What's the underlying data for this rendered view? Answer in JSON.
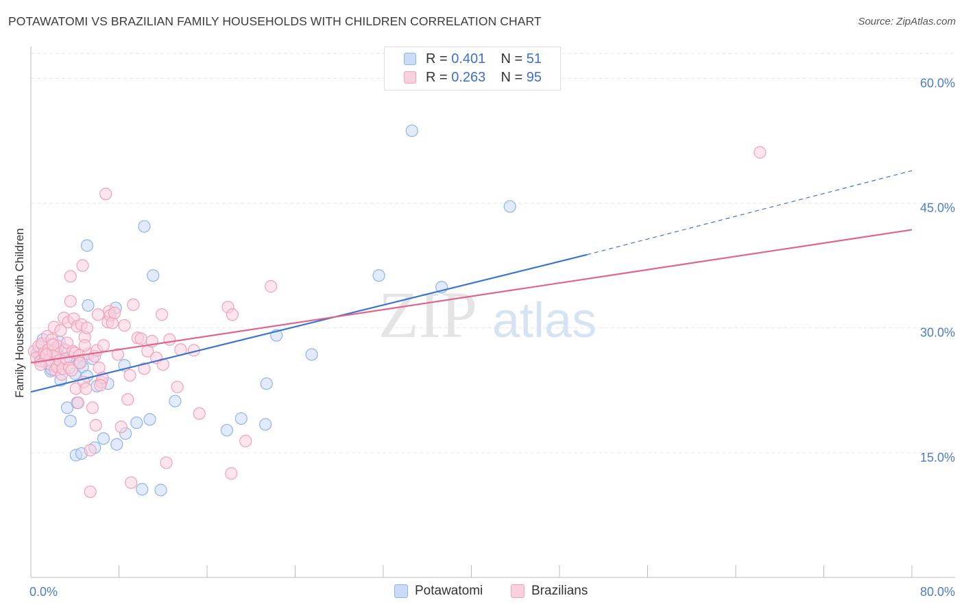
{
  "title": "POTAWATOMI VS BRAZILIAN FAMILY HOUSEHOLDS WITH CHILDREN CORRELATION CHART",
  "source": "Source: ZipAtlas.com",
  "watermark": {
    "zip": "ZIP",
    "atlas": "atlas"
  },
  "legend": {
    "rows": [
      {
        "r_label": "R =",
        "r_value": "0.401",
        "n_label": "N =",
        "n_value": "51",
        "color": "#8fb3ea",
        "fill": "#c9dbf7"
      },
      {
        "r_label": "R =",
        "r_value": "0.263",
        "n_label": "N =",
        "n_value": "95",
        "color": "#f1a0b8",
        "fill": "#fad0dc"
      }
    ]
  },
  "bottom_legend": [
    {
      "label": "Potawatomi",
      "color": "#8fb3ea",
      "fill": "#c9dbf7"
    },
    {
      "label": "Brazilians",
      "color": "#f1a0b8",
      "fill": "#fad0dc"
    }
  ],
  "chart_data": {
    "type": "scatter",
    "title": "POTAWATOMI VS BRAZILIAN FAMILY HOUSEHOLDS WITH CHILDREN CORRELATION CHART",
    "xlabel": "",
    "ylabel": "Family Households with Children",
    "xlim": [
      0,
      80
    ],
    "ylim": [
      0,
      63
    ],
    "x_tick_labels": [
      "0.0%",
      "80.0%"
    ],
    "y_ticks": [
      15,
      30,
      45,
      60
    ],
    "y_tick_labels": [
      "15.0%",
      "30.0%",
      "45.0%",
      "60.0%"
    ],
    "grid": true,
    "series": [
      {
        "name": "Potawatomi",
        "color": "#3b74d0",
        "point_stroke": "#8fb3ea",
        "point_fill": "#c9dbf7",
        "trend": {
          "x0": 0,
          "y0": 22.3,
          "x1": 50.5,
          "y1": 38.8,
          "dash_to_x": 80,
          "dash_to_y": 48.9
        },
        "points": [
          [
            1.0,
            26.8
          ],
          [
            1.4,
            25.8
          ],
          [
            1.1,
            28.6
          ],
          [
            1.8,
            24.8
          ],
          [
            2.2,
            27.6
          ],
          [
            2.7,
            23.7
          ],
          [
            3.0,
            26.2
          ],
          [
            3.1,
            27.3
          ],
          [
            2.6,
            28.3
          ],
          [
            3.3,
            20.4
          ],
          [
            3.6,
            18.8
          ],
          [
            4.0,
            24.5
          ],
          [
            4.2,
            21.0
          ],
          [
            4.1,
            14.7
          ],
          [
            4.6,
            14.9
          ],
          [
            4.7,
            25.3
          ],
          [
            5.1,
            24.2
          ],
          [
            5.1,
            39.9
          ],
          [
            5.2,
            32.7
          ],
          [
            5.6,
            26.3
          ],
          [
            5.8,
            15.6
          ],
          [
            6.0,
            23.0
          ],
          [
            6.6,
            16.7
          ],
          [
            7.0,
            23.3
          ],
          [
            7.8,
            16.0
          ],
          [
            7.7,
            32.4
          ],
          [
            8.5,
            25.5
          ],
          [
            8.6,
            17.3
          ],
          [
            9.6,
            18.6
          ],
          [
            10.1,
            10.6
          ],
          [
            10.3,
            42.2
          ],
          [
            10.8,
            19.0
          ],
          [
            11.1,
            36.3
          ],
          [
            11.8,
            10.5
          ],
          [
            13.1,
            21.2
          ],
          [
            17.8,
            17.7
          ],
          [
            19.1,
            19.1
          ],
          [
            21.4,
            23.3
          ],
          [
            21.3,
            18.4
          ],
          [
            22.3,
            29.1
          ],
          [
            25.5,
            26.8
          ],
          [
            31.6,
            36.3
          ],
          [
            34.6,
            53.7
          ],
          [
            37.3,
            34.9
          ],
          [
            43.5,
            44.6
          ],
          [
            0.6,
            27.0
          ],
          [
            0.8,
            26.5
          ],
          [
            1.9,
            25.0
          ],
          [
            2.4,
            26.9
          ],
          [
            3.5,
            26.5
          ],
          [
            4.4,
            25.8
          ]
        ]
      },
      {
        "name": "Brazilians",
        "color": "#e0648c",
        "point_stroke": "#f1a0b8",
        "point_fill": "#fad0dc",
        "trend": {
          "x0": 0,
          "y0": 25.8,
          "x1": 80,
          "y1": 41.8
        },
        "points": [
          [
            0.3,
            27.2
          ],
          [
            0.5,
            26.4
          ],
          [
            0.7,
            27.8
          ],
          [
            0.9,
            26.0
          ],
          [
            1.0,
            28.1
          ],
          [
            1.2,
            27.0
          ],
          [
            1.3,
            26.6
          ],
          [
            1.5,
            29.0
          ],
          [
            1.6,
            27.4
          ],
          [
            1.7,
            26.2
          ],
          [
            1.8,
            25.6
          ],
          [
            1.9,
            28.6
          ],
          [
            2.0,
            27.1
          ],
          [
            2.1,
            30.1
          ],
          [
            2.2,
            24.9
          ],
          [
            2.3,
            26.9
          ],
          [
            2.4,
            25.3
          ],
          [
            2.5,
            27.8
          ],
          [
            2.6,
            26.1
          ],
          [
            2.7,
            29.7
          ],
          [
            2.8,
            24.4
          ],
          [
            2.9,
            25.1
          ],
          [
            3.0,
            31.2
          ],
          [
            3.1,
            27.4
          ],
          [
            3.2,
            26.3
          ],
          [
            3.3,
            28.2
          ],
          [
            3.4,
            30.7
          ],
          [
            3.5,
            25.2
          ],
          [
            3.6,
            33.2
          ],
          [
            3.6,
            36.2
          ],
          [
            3.8,
            27.2
          ],
          [
            3.9,
            31.1
          ],
          [
            4.0,
            27.0
          ],
          [
            4.1,
            22.7
          ],
          [
            4.2,
            30.2
          ],
          [
            4.3,
            21.0
          ],
          [
            4.4,
            26.7
          ],
          [
            4.5,
            25.8
          ],
          [
            4.6,
            30.4
          ],
          [
            4.7,
            37.5
          ],
          [
            4.8,
            23.5
          ],
          [
            4.9,
            28.9
          ],
          [
            5.0,
            22.7
          ],
          [
            5.1,
            30.0
          ],
          [
            5.2,
            26.9
          ],
          [
            5.4,
            15.3
          ],
          [
            5.4,
            10.3
          ],
          [
            5.6,
            20.4
          ],
          [
            5.8,
            26.6
          ],
          [
            5.9,
            18.3
          ],
          [
            6.0,
            27.3
          ],
          [
            6.1,
            31.6
          ],
          [
            6.2,
            25.2
          ],
          [
            6.4,
            23.5
          ],
          [
            6.5,
            24.0
          ],
          [
            6.6,
            27.9
          ],
          [
            6.8,
            46.1
          ],
          [
            7.0,
            30.7
          ],
          [
            7.1,
            32.0
          ],
          [
            7.2,
            31.5
          ],
          [
            7.4,
            30.6
          ],
          [
            7.6,
            31.8
          ],
          [
            8.2,
            18.1
          ],
          [
            8.8,
            21.4
          ],
          [
            9.1,
            11.4
          ],
          [
            9.3,
            32.8
          ],
          [
            9.7,
            28.8
          ],
          [
            10.0,
            28.7
          ],
          [
            10.3,
            25.1
          ],
          [
            10.6,
            27.2
          ],
          [
            11.0,
            28.4
          ],
          [
            11.9,
            31.6
          ],
          [
            12.3,
            13.8
          ],
          [
            12.6,
            28.6
          ],
          [
            13.3,
            22.9
          ],
          [
            14.8,
            27.3
          ],
          [
            15.3,
            19.7
          ],
          [
            17.9,
            32.5
          ],
          [
            18.2,
            12.5
          ],
          [
            18.3,
            31.6
          ],
          [
            19.5,
            16.4
          ],
          [
            21.8,
            35.0
          ],
          [
            66.2,
            51.1
          ],
          [
            0.9,
            25.6
          ],
          [
            1.4,
            26.8
          ],
          [
            2.0,
            28.0
          ],
          [
            3.7,
            24.9
          ],
          [
            4.9,
            27.9
          ],
          [
            7.9,
            26.8
          ],
          [
            9.0,
            24.3
          ],
          [
            11.4,
            26.4
          ],
          [
            12.0,
            25.6
          ],
          [
            13.6,
            27.4
          ],
          [
            6.3,
            23.1
          ],
          [
            8.5,
            30.3
          ]
        ]
      }
    ]
  }
}
